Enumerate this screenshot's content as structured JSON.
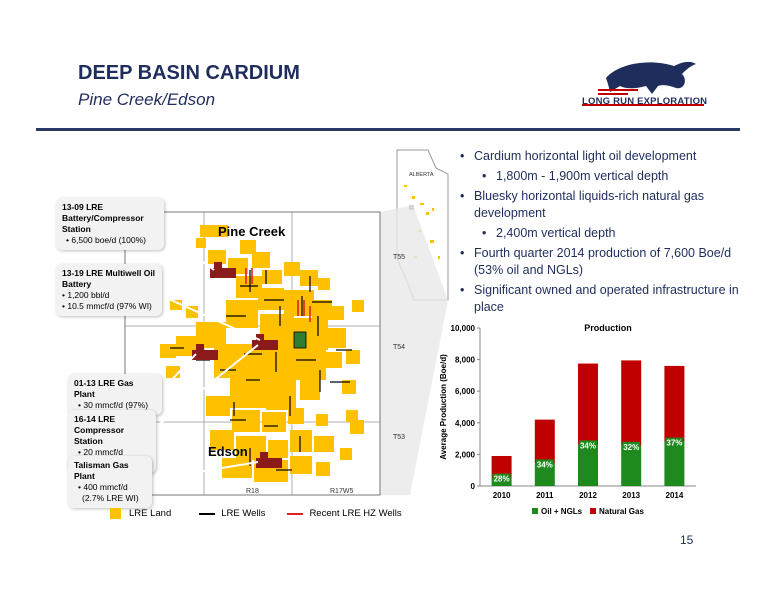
{
  "slide": {
    "title": "DEEP BASIN CARDIUM",
    "subtitle": "Pine Creek/Edson",
    "page_number": "15"
  },
  "logo": {
    "text": "LONG RUN EXPLORATION",
    "icon": "running-horse-icon"
  },
  "map": {
    "inset_label": "ALBERTA",
    "areas": [
      "Pine Creek",
      "Edson"
    ],
    "township_labels": [
      "T55",
      "T54",
      "T53"
    ],
    "range_labels": [
      "R18",
      "R17W5"
    ],
    "callouts": [
      {
        "head": "13-09 LRE Battery/Compressor Station",
        "lines": [
          "• 6,500 boe/d (100%)"
        ]
      },
      {
        "head": "13-19 LRE Multiwell Oil Battery",
        "lines": [
          "• 1,200 bbl/d",
          "• 10.5 mmcf/d (97% WI)"
        ]
      },
      {
        "head": "01-13 LRE Gas Plant",
        "lines": [
          "• 30 mmcf/d (97%)"
        ]
      },
      {
        "head": "16-14 LRE Compressor Station",
        "lines": [
          "• 20 mmcf/d (100%)"
        ]
      },
      {
        "head": "Talisman Gas Plant",
        "lines": [
          "• 400 mmcf/d",
          "(2.7% LRE WI)"
        ]
      }
    ],
    "legend": [
      {
        "label": "LRE Land",
        "color": "#ffc000",
        "kind": "square"
      },
      {
        "label": "LRE Wells",
        "color": "#000000",
        "kind": "line"
      },
      {
        "label": "Recent LRE HZ Wells",
        "color": "#e02020",
        "kind": "line"
      }
    ]
  },
  "bullets": [
    {
      "level": 1,
      "text": "Cardium horizontal light oil development"
    },
    {
      "level": 2,
      "text": "1,800m - 1,900m vertical depth"
    },
    {
      "level": 1,
      "text": "Bluesky horizontal liquids-rich natural gas development"
    },
    {
      "level": 2,
      "text": "2,400m vertical depth"
    },
    {
      "level": 1,
      "text": "Fourth quarter 2014 production of 7,600 Boe/d (53% oil and NGLs)"
    },
    {
      "level": 1,
      "text": "Significant owned and operated infrastructure in place"
    }
  ],
  "chart_data": {
    "type": "bar",
    "stacked": true,
    "title": "Production",
    "ylabel": "Average Production (Boe/d)",
    "xlabel": "",
    "categories": [
      "2010",
      "2011",
      "2012",
      "2013",
      "2014"
    ],
    "ylim": [
      0,
      10000
    ],
    "yticks": [
      0,
      2000,
      4000,
      6000,
      8000,
      10000
    ],
    "ytick_labels": [
      "0",
      "2,000",
      "4,000",
      "6,000",
      "8,000",
      "10,000"
    ],
    "series": [
      {
        "name": "Oil + NGLs",
        "color": "#1e8a1e",
        "values": [
          530,
          1430,
          2630,
          2540,
          2810
        ]
      },
      {
        "name": "Natural Gas",
        "color": "#c00000",
        "values": [
          1370,
          2770,
          5120,
          5410,
          4790
        ]
      }
    ],
    "data_labels": [
      "28%",
      "34%",
      "34%",
      "32%",
      "37%"
    ],
    "legend_position": "bottom"
  }
}
